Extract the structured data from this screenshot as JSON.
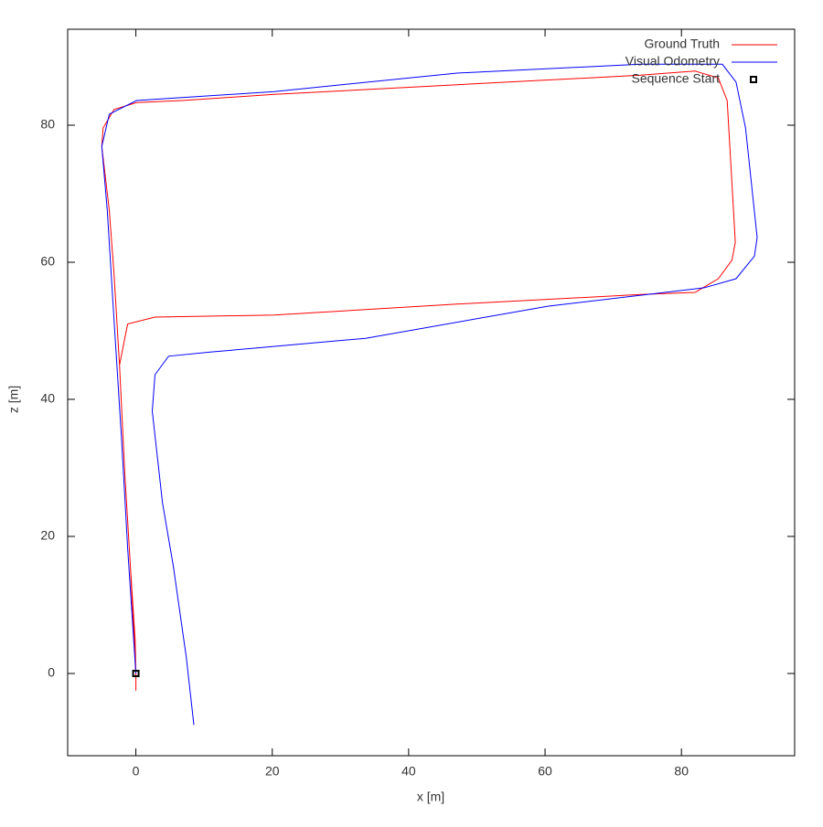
{
  "chart_data": {
    "type": "line",
    "x_label": "x [m]",
    "y_label": "z [m]",
    "xlim": [
      -10,
      96.6
    ],
    "ylim": [
      -12,
      94
    ],
    "xticks": [
      0,
      20,
      40,
      60,
      80
    ],
    "yticks": [
      0,
      20,
      40,
      60,
      80
    ],
    "legend": "top-right",
    "series": [
      {
        "name": "Ground Truth",
        "color": "#ff0000",
        "x": [
          0,
          -0.8,
          -1.6,
          -2.4,
          -3.2,
          -3.9,
          -5,
          -4.8,
          -3.2,
          0.1,
          6.8,
          20.3,
          47.1,
          74,
          82,
          85.4,
          86.7,
          87.4,
          87.9,
          87.4,
          85.4,
          82,
          74,
          47.1,
          20.3,
          2.8,
          -1.2,
          -2.4,
          -1.6,
          -0.8,
          -0.1,
          0,
          0
        ],
        "values": [
          0,
          15.6,
          28.9,
          45,
          58.3,
          67.6,
          76.9,
          79.6,
          82.3,
          83.3,
          83.6,
          84.5,
          85.9,
          87.3,
          87.9,
          86.9,
          83.6,
          71.6,
          62.9,
          60.3,
          57.6,
          55.6,
          55.3,
          53.9,
          52.3,
          52,
          51,
          45,
          28.9,
          15.6,
          4.9,
          0,
          -2.5
        ]
      },
      {
        "name": "Visual Odometry",
        "color": "#0000ff",
        "x": [
          0,
          -1.2,
          -2.1,
          -3.2,
          -4.2,
          -5,
          -3.9,
          0.1,
          20.3,
          47.1,
          74,
          86,
          88,
          89.4,
          91.1,
          90.7,
          88,
          83.4,
          60.5,
          33.7,
          10.9,
          4.8,
          2.8,
          2.4,
          3.9,
          5.5,
          7.4,
          8.5
        ],
        "values": [
          0,
          18.3,
          34.3,
          51.6,
          67.6,
          76.9,
          81.6,
          83.6,
          84.9,
          87.6,
          88.9,
          88.9,
          86.3,
          79.6,
          63.6,
          60.9,
          57.6,
          56.3,
          53.6,
          48.9,
          46.9,
          46.3,
          43.6,
          38.3,
          24.9,
          15.6,
          2.3,
          -7.5
        ]
      },
      {
        "name": "Sequence Start",
        "color": "#000000",
        "marker": "square",
        "x": [
          0
        ],
        "values": [
          0
        ]
      }
    ]
  }
}
